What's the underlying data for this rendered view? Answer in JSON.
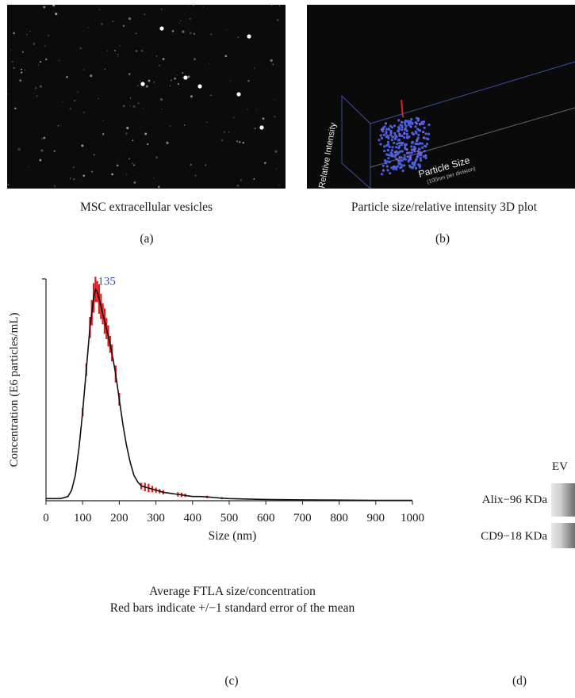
{
  "panel_a": {
    "caption": "MSC extracellular vesicles",
    "letter": "(a)"
  },
  "panel_b": {
    "caption": "Particle size/relative intensity 3D plot",
    "letter": "(b)",
    "axis_x_label": "Particle Size",
    "axis_x_sublabel": "(100nm per division)",
    "axis_y_label": "Relative Intensity"
  },
  "panel_c": {
    "letter": "(c)",
    "caption_line1": "Average FTLA size/concentration",
    "caption_line2": "Red bars indicate +/−1 standard error of the mean"
  },
  "panel_d": {
    "letter": "(d)",
    "lane_label": "EV",
    "bands": [
      {
        "label": "Alix−96 KDa"
      },
      {
        "label": "CD9−18 KDa"
      }
    ]
  },
  "chart_data": {
    "type": "line",
    "title": "",
    "xlabel": "Size (nm)",
    "ylabel": "Concentration (E6 particles/mL)",
    "xlim": [
      0,
      1000
    ],
    "xticks": [
      0,
      100,
      200,
      300,
      400,
      500,
      600,
      700,
      800,
      900,
      1000
    ],
    "peak_annotation": "135",
    "peak_x": 135,
    "ylim": [
      0,
      1.05
    ],
    "series": [
      {
        "x": [
          0,
          20,
          40,
          60,
          70,
          80,
          90,
          100,
          110,
          120,
          130,
          135,
          140,
          150,
          160,
          170,
          180,
          190,
          200,
          210,
          220,
          230,
          240,
          250,
          260,
          270,
          280,
          300,
          320,
          340,
          360,
          380,
          400,
          420,
          440,
          460,
          480,
          500,
          550,
          600,
          700,
          800,
          900,
          1000
        ],
        "values": [
          0.01,
          0.01,
          0.01,
          0.02,
          0.05,
          0.12,
          0.25,
          0.42,
          0.62,
          0.82,
          0.96,
          1.0,
          0.99,
          0.92,
          0.85,
          0.78,
          0.7,
          0.6,
          0.48,
          0.36,
          0.26,
          0.18,
          0.12,
          0.09,
          0.07,
          0.065,
          0.06,
          0.05,
          0.04,
          0.035,
          0.03,
          0.025,
          0.02,
          0.02,
          0.018,
          0.015,
          0.012,
          0.01,
          0.008,
          0.006,
          0.004,
          0.003,
          0.002,
          0.002
        ]
      }
    ],
    "error_bars": {
      "x": [
        100,
        110,
        120,
        125,
        130,
        135,
        140,
        145,
        150,
        155,
        160,
        165,
        170,
        175,
        180,
        190,
        200,
        260,
        270,
        280,
        290,
        300,
        310,
        320,
        360,
        370,
        380,
        440,
        480
      ],
      "half_width": [
        0.02,
        0.03,
        0.05,
        0.06,
        0.07,
        0.06,
        0.05,
        0.07,
        0.06,
        0.05,
        0.06,
        0.05,
        0.05,
        0.04,
        0.04,
        0.04,
        0.03,
        0.015,
        0.02,
        0.02,
        0.015,
        0.012,
        0.01,
        0.01,
        0.01,
        0.01,
        0.008,
        0.006,
        0.005
      ]
    }
  }
}
